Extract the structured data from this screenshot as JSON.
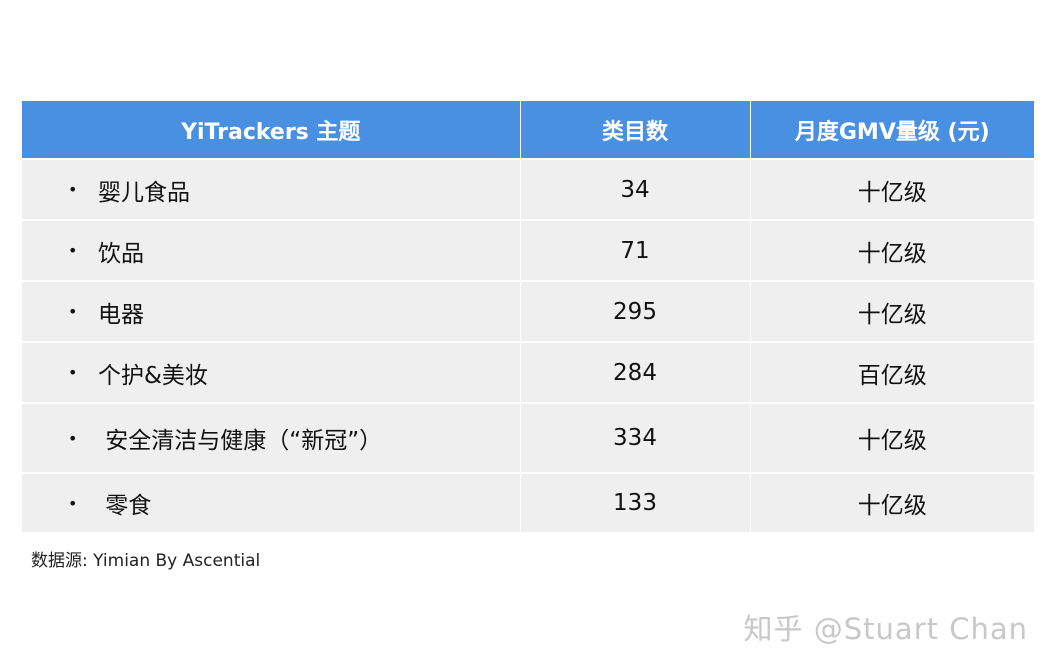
{
  "table": {
    "headers": [
      "YiTrackers 主题",
      "类目数",
      "月度GMV量级 (元)"
    ],
    "bullet": "•",
    "rows": [
      {
        "category": "婴儿食品",
        "count": "34",
        "gmv": "十亿级"
      },
      {
        "category": "饮品",
        "count": "71",
        "gmv": "十亿级"
      },
      {
        "category": "电器",
        "count": "295",
        "gmv": "十亿级"
      },
      {
        "category": "个护&美妆",
        "count": "284",
        "gmv": "百亿级"
      },
      {
        "category": " 安全清洁与健康（“新冠”）",
        "count": "334",
        "gmv": "十亿级"
      },
      {
        "category": " 零食",
        "count": "133",
        "gmv": "十亿级"
      }
    ]
  },
  "source": "数据源: Yimian By Ascential",
  "watermark": "知乎 @Stuart Chan",
  "colors": {
    "header_bg": "#4a90e2",
    "row_bg": "#efefef"
  }
}
